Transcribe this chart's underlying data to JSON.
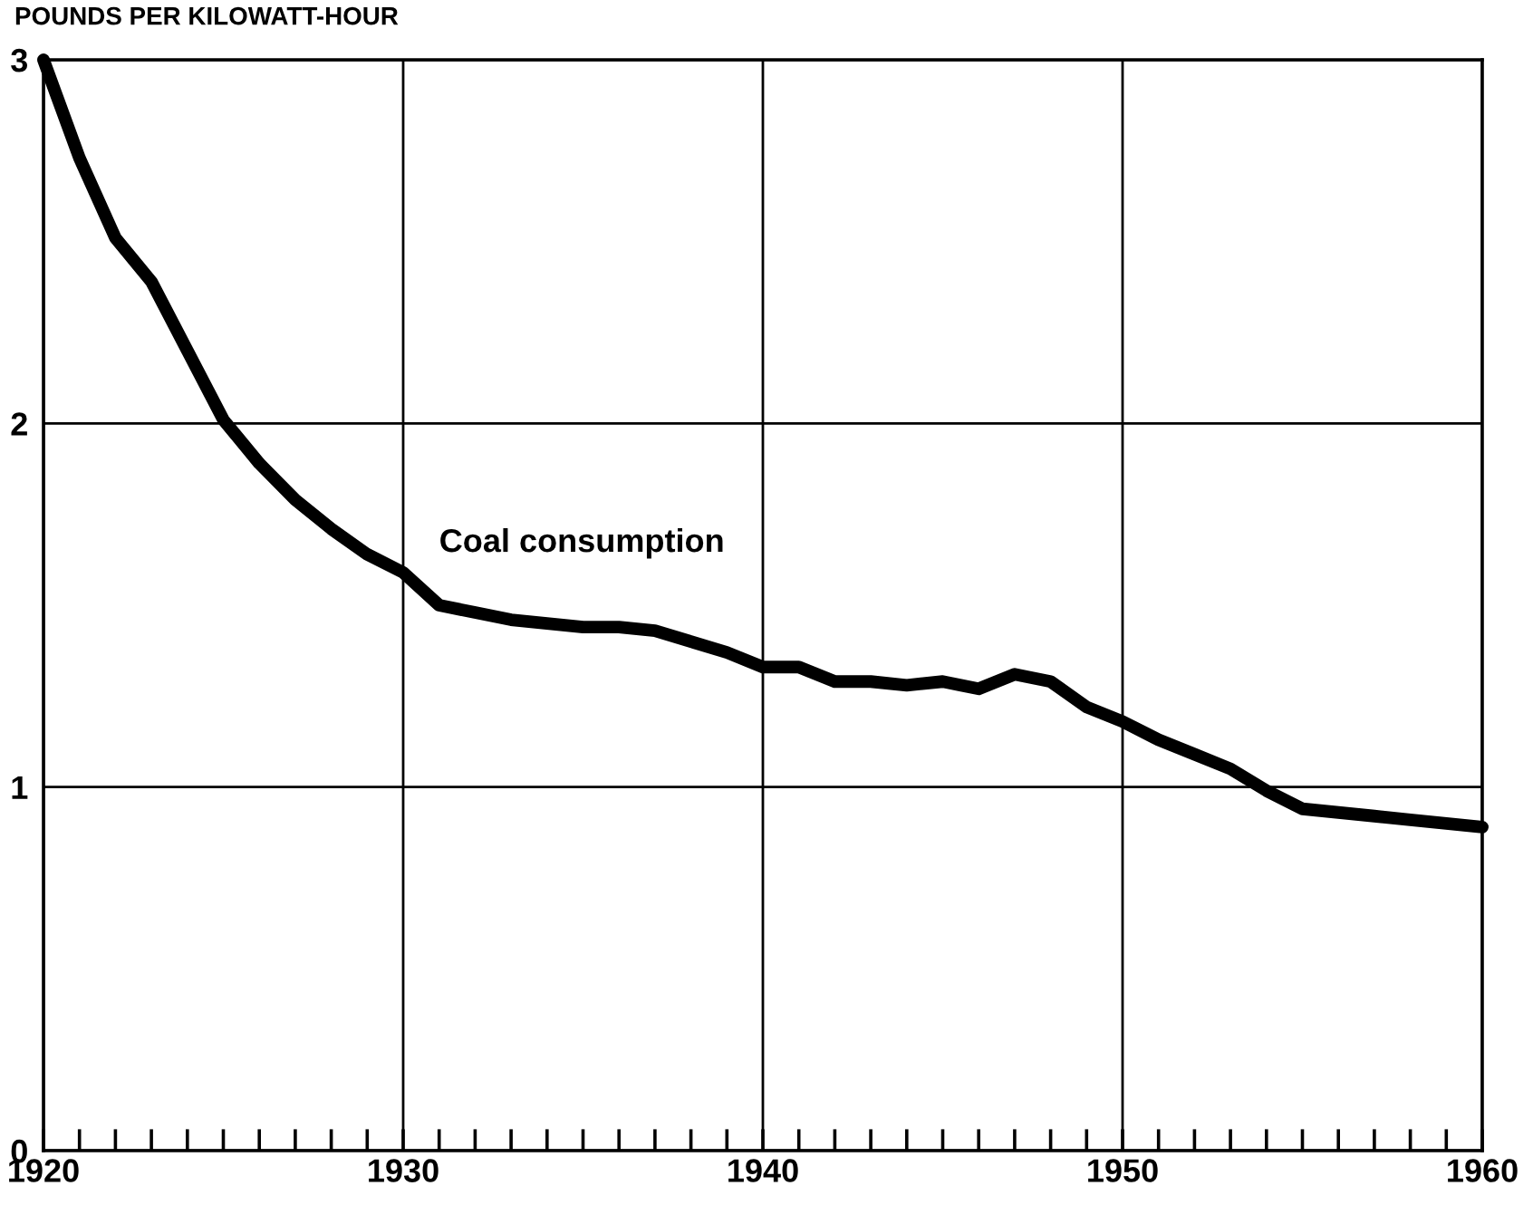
{
  "chart_data": {
    "type": "line",
    "ylabel": "POUNDS PER KILOWATT-HOUR",
    "x": [
      1920,
      1921,
      1922,
      1923,
      1924,
      1925,
      1926,
      1927,
      1928,
      1929,
      1930,
      1931,
      1932,
      1933,
      1934,
      1935,
      1936,
      1937,
      1938,
      1939,
      1940,
      1941,
      1942,
      1943,
      1944,
      1945,
      1946,
      1947,
      1948,
      1949,
      1950,
      1951,
      1952,
      1953,
      1954,
      1955,
      1956,
      1957,
      1958,
      1959,
      1960
    ],
    "series": [
      {
        "name": "Coal consumption",
        "color": "#000000",
        "values": [
          3.0,
          2.73,
          2.51,
          2.39,
          2.2,
          2.01,
          1.89,
          1.79,
          1.71,
          1.64,
          1.59,
          1.5,
          1.48,
          1.46,
          1.45,
          1.44,
          1.44,
          1.43,
          1.4,
          1.37,
          1.33,
          1.33,
          1.29,
          1.29,
          1.28,
          1.29,
          1.27,
          1.31,
          1.29,
          1.22,
          1.18,
          1.13,
          1.09,
          1.05,
          0.99,
          0.94,
          0.93,
          0.92,
          0.91,
          0.9,
          0.89
        ]
      }
    ],
    "xlim": [
      1920,
      1960
    ],
    "xticks": [
      1920,
      {
        "value": 1921,
        "label": null
      },
      {
        "value": 1922,
        "label": null
      },
      {
        "value": 1923,
        "label": null
      },
      {
        "value": 1924,
        "label": null
      },
      {
        "value": 1925,
        "label": null
      },
      {
        "value": 1926,
        "label": null
      },
      {
        "value": 1927,
        "label": null
      },
      {
        "value": 1928,
        "label": null
      },
      {
        "value": 1929,
        "label": null
      },
      1930,
      {
        "value": 1931,
        "label": null
      },
      {
        "value": 1932,
        "label": null
      },
      {
        "value": 1933,
        "label": null
      },
      {
        "value": 1934,
        "label": null
      },
      {
        "value": 1935,
        "label": null
      },
      {
        "value": 1936,
        "label": null
      },
      {
        "value": 1937,
        "label": null
      },
      {
        "value": 1938,
        "label": null
      },
      {
        "value": 1939,
        "label": null
      },
      1940,
      {
        "value": 1941,
        "label": null
      },
      {
        "value": 1942,
        "label": null
      },
      {
        "value": 1943,
        "label": null
      },
      {
        "value": 1944,
        "label": null
      },
      {
        "value": 1945,
        "label": null
      },
      {
        "value": 1946,
        "label": null
      },
      {
        "value": 1947,
        "label": null
      },
      {
        "value": 1948,
        "label": null
      },
      {
        "value": 1949,
        "label": null
      },
      1950,
      {
        "value": 1951,
        "label": null
      },
      {
        "value": 1952,
        "label": null
      },
      {
        "value": 1953,
        "label": null
      },
      {
        "value": 1954,
        "label": null
      },
      {
        "value": 1955,
        "label": null
      },
      {
        "value": 1956,
        "label": null
      },
      {
        "value": 1957,
        "label": null
      },
      {
        "value": 1958,
        "label": null
      },
      {
        "value": 1959,
        "label": null
      },
      1960
    ],
    "ylim": [
      0,
      3
    ],
    "yticks": [
      0,
      1,
      2,
      3
    ],
    "grid": true,
    "line_style": "solid"
  }
}
